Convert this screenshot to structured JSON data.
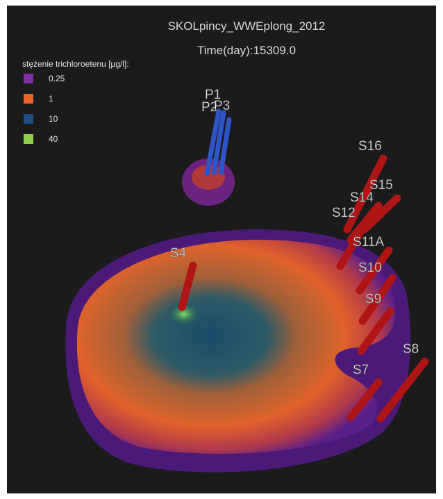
{
  "header": {
    "title": "SKOLpincy_WWEplong_2012",
    "time": "Time(day):15309.0"
  },
  "legend": {
    "title": "stężenie trichloroetenu [µg/l]:",
    "items": [
      {
        "label": "0.25",
        "color": "#7d2fa6"
      },
      {
        "label": "1",
        "color": "#e8662a"
      },
      {
        "label": "10",
        "color": "#1d4f86"
      },
      {
        "label": "40",
        "color": "#8fd14f"
      }
    ]
  },
  "wells": [
    {
      "label": "P1"
    },
    {
      "label": "P2"
    },
    {
      "label": "P3"
    },
    {
      "label": "S16"
    },
    {
      "label": "S15"
    },
    {
      "label": "S14"
    },
    {
      "label": "S12"
    },
    {
      "label": "S11A"
    },
    {
      "label": "S10"
    },
    {
      "label": "S9"
    },
    {
      "label": "S8"
    },
    {
      "label": "S7"
    },
    {
      "label": "S4"
    }
  ]
}
